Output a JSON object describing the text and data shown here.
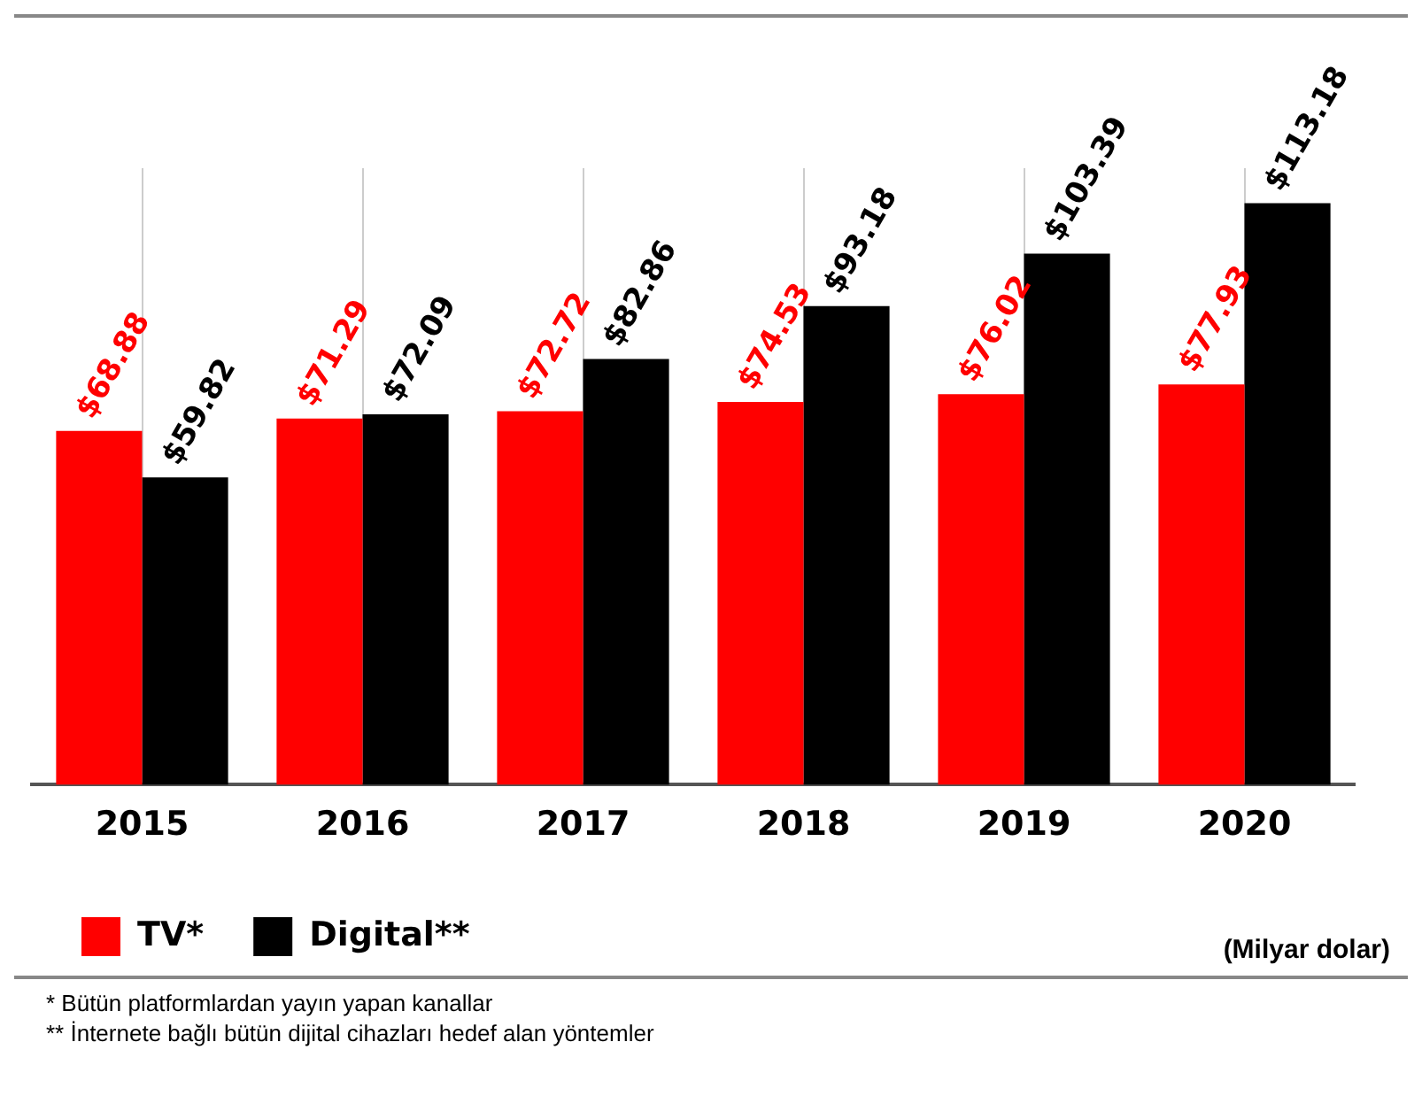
{
  "chart_data": {
    "type": "bar",
    "categories": [
      "2015",
      "2016",
      "2017",
      "2018",
      "2019",
      "2020"
    ],
    "series": [
      {
        "name": "TV*",
        "color": "#ff0000",
        "values": [
          68.88,
          71.29,
          72.72,
          74.53,
          76.02,
          77.93
        ],
        "value_labels": [
          "$68.88",
          "$71.29",
          "$72.72",
          "$74.53",
          "$76.02",
          "$77.93"
        ]
      },
      {
        "name": "Digital**",
        "color": "#000000",
        "values": [
          59.82,
          72.09,
          82.86,
          93.18,
          103.39,
          113.18
        ],
        "value_labels": [
          "$59.82",
          "$72.09",
          "$82.86",
          "$93.18",
          "$103.39",
          "$113.18"
        ]
      }
    ],
    "grid": "x",
    "legend": "bottom left",
    "annotations": [
      "(Milyar dolar)",
      "* Bütün platformlardan yayın yapan kanallar",
      "** İnternete bağlı bütün dijital cihazları hedef alan yöntemler"
    ]
  }
}
